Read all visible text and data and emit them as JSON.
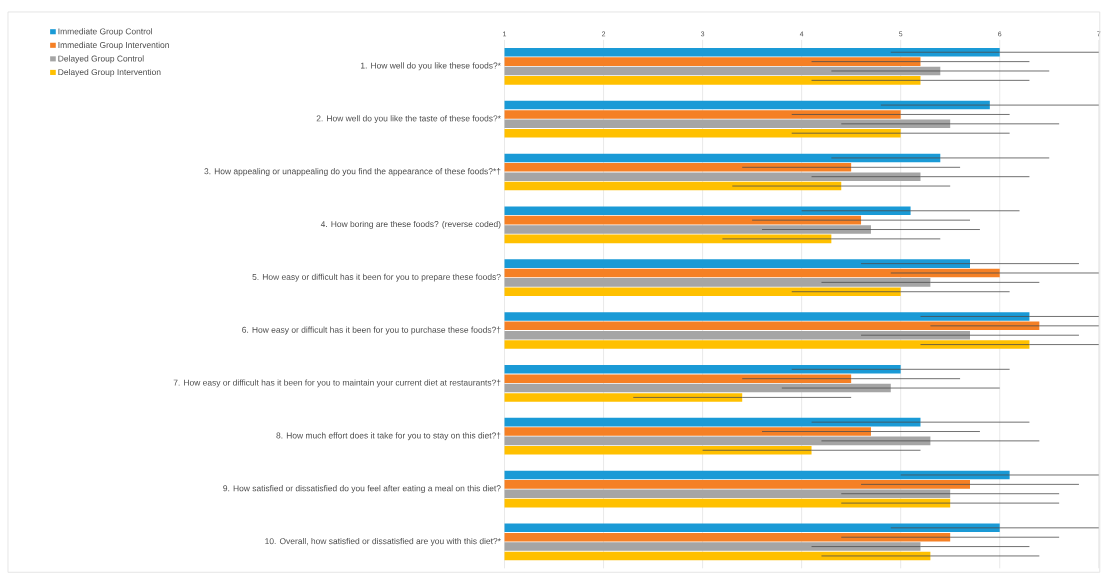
{
  "chart_data": {
    "type": "bar",
    "orientation": "horizontal",
    "categories": [
      "1.   How well do you like these foods?*",
      "2.   How well do you like the taste of these foods?*",
      "3.   How appealing or unappealing do you find the appearance of these foods?*†",
      "4.   How boring are these foods? (reverse coded)",
      "5.   How easy or difficult has it been for you to prepare these foods?",
      "6.   How easy or difficult has it been for you to purchase these foods?†",
      "7.   How easy or difficult has it been for you to maintain your current diet at restaurants?†",
      "8.   How much effort does it take for you to stay on this diet?†",
      "9.   How satisfied or dissatisfied do you feel after eating a meal on this diet?",
      "10.   Overall, how satisfied or dissatisfied are you with this diet?*"
    ],
    "series": [
      {
        "name": "Immediate Group Control",
        "color": "#1a9ad6",
        "values": [
          6.0,
          5.9,
          5.4,
          5.1,
          5.7,
          6.3,
          5.0,
          5.2,
          6.1,
          6.0
        ],
        "errors": [
          [
            4.9,
            7
          ],
          [
            4.8,
            7
          ],
          [
            4.3,
            6.5
          ],
          [
            4.0,
            6.2
          ],
          [
            4.6,
            6.8
          ],
          [
            5.2,
            7
          ],
          [
            3.9,
            6.1
          ],
          [
            4.1,
            6.3
          ],
          [
            5.0,
            7
          ],
          [
            4.9,
            7
          ]
        ]
      },
      {
        "name": "Immediate Group Intervention",
        "color": "#f58025",
        "values": [
          5.2,
          5.0,
          4.5,
          4.6,
          6.0,
          6.4,
          4.5,
          4.7,
          5.7,
          5.5
        ],
        "errors": [
          [
            4.1,
            6.3
          ],
          [
            3.9,
            6.1
          ],
          [
            3.4,
            5.6
          ],
          [
            3.5,
            5.7
          ],
          [
            4.9,
            7
          ],
          [
            5.3,
            7
          ],
          [
            3.4,
            5.6
          ],
          [
            3.6,
            5.8
          ],
          [
            4.6,
            6.8
          ],
          [
            4.4,
            6.6
          ]
        ]
      },
      {
        "name": "Delayed Group Control",
        "color": "#a5a5a5",
        "values": [
          5.4,
          5.5,
          5.2,
          4.7,
          5.3,
          5.7,
          4.9,
          5.3,
          5.5,
          5.2
        ],
        "errors": [
          [
            4.3,
            6.5
          ],
          [
            4.4,
            6.6
          ],
          [
            4.1,
            6.3
          ],
          [
            3.6,
            5.8
          ],
          [
            4.2,
            6.4
          ],
          [
            4.6,
            6.8
          ],
          [
            3.8,
            6.0
          ],
          [
            4.2,
            6.4
          ],
          [
            4.4,
            6.6
          ],
          [
            4.1,
            6.3
          ]
        ]
      },
      {
        "name": "Delayed Group Intervention",
        "color": "#ffc000",
        "values": [
          5.2,
          5.0,
          4.4,
          4.3,
          5.0,
          6.3,
          3.4,
          4.1,
          5.5,
          5.3
        ],
        "errors": [
          [
            4.1,
            6.3
          ],
          [
            3.9,
            6.1
          ],
          [
            3.3,
            5.5
          ],
          [
            3.2,
            5.4
          ],
          [
            3.9,
            6.1
          ],
          [
            5.2,
            7
          ],
          [
            2.3,
            4.5
          ],
          [
            3.0,
            5.2
          ],
          [
            4.4,
            6.6
          ],
          [
            4.2,
            6.4
          ]
        ]
      }
    ],
    "xlim": [
      1,
      7
    ],
    "xticks": [
      1,
      2,
      3,
      4,
      5,
      6,
      7
    ],
    "grid": "x",
    "legend": "top left"
  }
}
